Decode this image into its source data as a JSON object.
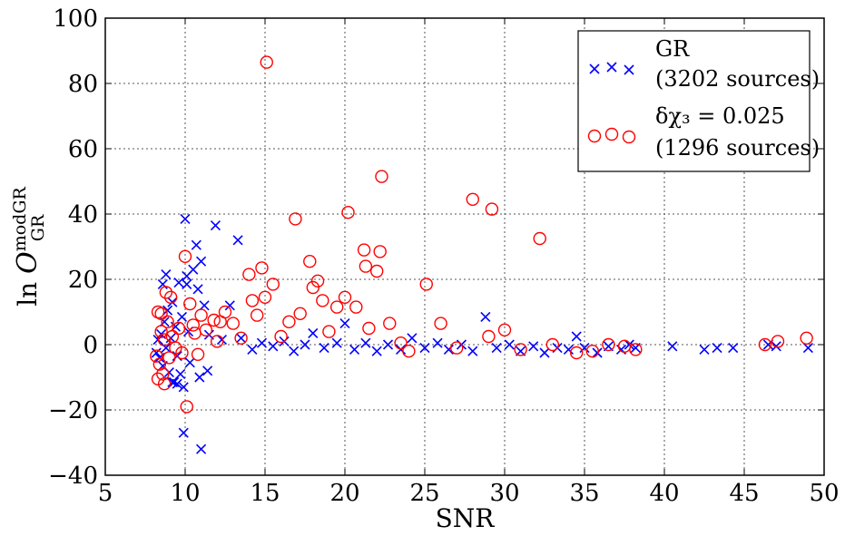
{
  "chart_data": {
    "type": "scatter",
    "xlabel": "SNR",
    "ylabel": "ln O_GR^modGR",
    "xlim": [
      5,
      50
    ],
    "ylim": [
      -40,
      100
    ],
    "x_ticks": [
      "5",
      "10",
      "15",
      "20",
      "25",
      "30",
      "35",
      "40",
      "45",
      "50"
    ],
    "y_ticks": [
      "−40",
      "−20",
      "0",
      "20",
      "40",
      "60",
      "80",
      "100"
    ],
    "grid": true,
    "legend_position": "top-right",
    "series": [
      {
        "name": "GR",
        "legend_note": "(3202 sources)",
        "marker": "x",
        "color": "#0000ff",
        "points": [
          [
            8.2,
            -2.5
          ],
          [
            8.3,
            1.5
          ],
          [
            8.4,
            -4.0
          ],
          [
            8.5,
            3.2
          ],
          [
            8.6,
            -6.5
          ],
          [
            8.7,
            7.0
          ],
          [
            8.8,
            -1.0
          ],
          [
            8.9,
            10.5
          ],
          [
            9.0,
            -8.5
          ],
          [
            9.1,
            2.0
          ],
          [
            9.2,
            13.0
          ],
          [
            9.3,
            -11.5
          ],
          [
            9.4,
            5.5
          ],
          [
            9.5,
            -3.5
          ],
          [
            9.6,
            19.0
          ],
          [
            9.7,
            -9.0
          ],
          [
            9.8,
            8.5
          ],
          [
            9.9,
            -13.0
          ],
          [
            10.0,
            38.5
          ],
          [
            10.1,
            21.0
          ],
          [
            10.2,
            4.0
          ],
          [
            10.3,
            -5.5
          ],
          [
            10.5,
            23.0
          ],
          [
            10.7,
            30.5
          ],
          [
            10.8,
            17.0
          ],
          [
            11.0,
            25.5
          ],
          [
            11.2,
            12.0
          ],
          [
            11.4,
            -8.0
          ],
          [
            11.5,
            3.0
          ],
          [
            11.9,
            36.5
          ],
          [
            12.3,
            1.5
          ],
          [
            12.8,
            12.0
          ],
          [
            13.3,
            32.0
          ],
          [
            13.5,
            2.0
          ],
          [
            14.2,
            -1.5
          ],
          [
            14.8,
            0.5
          ],
          [
            15.5,
            -0.5
          ],
          [
            16.2,
            1.0
          ],
          [
            16.8,
            -2.0
          ],
          [
            17.5,
            0.0
          ],
          [
            18.0,
            3.5
          ],
          [
            18.7,
            -1.0
          ],
          [
            19.5,
            0.5
          ],
          [
            20.0,
            6.5
          ],
          [
            20.6,
            -1.5
          ],
          [
            21.3,
            0.5
          ],
          [
            22.0,
            -2.0
          ],
          [
            22.7,
            0.0
          ],
          [
            23.5,
            -1.5
          ],
          [
            24.2,
            2.0
          ],
          [
            25.0,
            -1.0
          ],
          [
            25.8,
            0.5
          ],
          [
            26.5,
            -1.5
          ],
          [
            27.3,
            0.0
          ],
          [
            28.0,
            -2.0
          ],
          [
            28.8,
            8.5
          ],
          [
            29.5,
            -1.0
          ],
          [
            30.3,
            0.0
          ],
          [
            31.0,
            -2.0
          ],
          [
            31.8,
            -0.5
          ],
          [
            32.5,
            -2.5
          ],
          [
            33.3,
            -1.0
          ],
          [
            34.0,
            -1.5
          ],
          [
            34.5,
            2.5
          ],
          [
            35.0,
            -1.0
          ],
          [
            35.8,
            -2.5
          ],
          [
            36.5,
            -0.5
          ],
          [
            37.3,
            -1.5
          ],
          [
            37.8,
            0.0
          ],
          [
            38.2,
            -1.0
          ],
          [
            40.5,
            -0.5
          ],
          [
            42.5,
            -1.5
          ],
          [
            43.3,
            -1.0
          ],
          [
            44.3,
            -1.0
          ],
          [
            46.5,
            0.0
          ],
          [
            47.0,
            -0.5
          ],
          [
            49.0,
            -1.0
          ],
          [
            9.2,
            -11.5
          ],
          [
            9.5,
            -12.0
          ],
          [
            9.9,
            -27.0
          ],
          [
            10.1,
            18.5
          ],
          [
            11.0,
            -32.0
          ],
          [
            8.6,
            18.5
          ],
          [
            8.8,
            21.5
          ],
          [
            10.9,
            -10.0
          ]
        ]
      },
      {
        "name": "δχ₃ = 0.025",
        "legend_note": "(1296 sources)",
        "marker": "o",
        "color": "#ff0000",
        "points": [
          [
            8.2,
            -3.5
          ],
          [
            8.3,
            10.0
          ],
          [
            8.4,
            -6.0
          ],
          [
            8.5,
            4.0
          ],
          [
            8.6,
            -9.0
          ],
          [
            8.7,
            1.5
          ],
          [
            8.8,
            16.0
          ],
          [
            8.9,
            7.0
          ],
          [
            9.0,
            -4.0
          ],
          [
            9.2,
            2.5
          ],
          [
            9.4,
            -1.0
          ],
          [
            9.6,
            5.0
          ],
          [
            9.8,
            -2.5
          ],
          [
            10.0,
            27.0
          ],
          [
            10.1,
            -19.0
          ],
          [
            10.3,
            12.5
          ],
          [
            10.5,
            6.0
          ],
          [
            10.8,
            -3.0
          ],
          [
            11.0,
            9.0
          ],
          [
            11.3,
            4.5
          ],
          [
            11.8,
            7.5
          ],
          [
            12.0,
            1.0
          ],
          [
            12.5,
            10.0
          ],
          [
            13.0,
            6.5
          ],
          [
            13.5,
            2.0
          ],
          [
            14.0,
            21.5
          ],
          [
            14.2,
            13.5
          ],
          [
            14.5,
            9.0
          ],
          [
            14.8,
            23.5
          ],
          [
            15.0,
            14.5
          ],
          [
            15.1,
            86.5
          ],
          [
            15.5,
            18.5
          ],
          [
            16.0,
            2.5
          ],
          [
            16.5,
            7.0
          ],
          [
            16.9,
            38.5
          ],
          [
            17.2,
            9.5
          ],
          [
            17.8,
            25.5
          ],
          [
            18.0,
            17.5
          ],
          [
            18.3,
            19.5
          ],
          [
            18.6,
            13.5
          ],
          [
            19.0,
            4.0
          ],
          [
            19.5,
            11.5
          ],
          [
            20.0,
            14.5
          ],
          [
            20.2,
            40.5
          ],
          [
            20.7,
            11.5
          ],
          [
            21.2,
            29.0
          ],
          [
            21.3,
            24.0
          ],
          [
            21.5,
            5.0
          ],
          [
            22.0,
            22.5
          ],
          [
            22.2,
            28.5
          ],
          [
            22.3,
            51.5
          ],
          [
            22.8,
            6.5
          ],
          [
            23.5,
            0.5
          ],
          [
            24.0,
            -2.0
          ],
          [
            25.1,
            18.5
          ],
          [
            26.0,
            6.5
          ],
          [
            27.0,
            -1.0
          ],
          [
            28.0,
            44.5
          ],
          [
            29.0,
            2.5
          ],
          [
            29.2,
            41.5
          ],
          [
            30.0,
            4.5
          ],
          [
            31.0,
            -1.5
          ],
          [
            32.2,
            32.5
          ],
          [
            33.0,
            0.0
          ],
          [
            34.5,
            -2.5
          ],
          [
            35.5,
            -2.0
          ],
          [
            36.5,
            0.0
          ],
          [
            37.5,
            -0.5
          ],
          [
            38.2,
            -1.5
          ],
          [
            46.3,
            0.0
          ],
          [
            47.1,
            1.0
          ],
          [
            48.9,
            2.0
          ],
          [
            8.3,
            -10.5
          ],
          [
            8.5,
            9.5
          ],
          [
            8.7,
            -12.0
          ],
          [
            9.1,
            14.5
          ],
          [
            10.6,
            3.5
          ],
          [
            12.2,
            7.0
          ]
        ]
      }
    ]
  }
}
